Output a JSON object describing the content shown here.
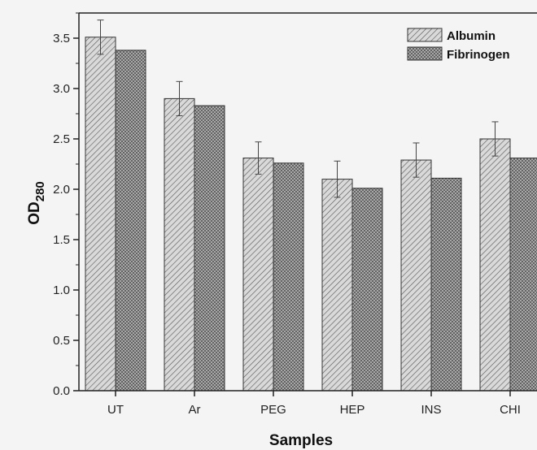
{
  "chart_data": {
    "type": "bar",
    "title": "",
    "xlabel": "Samples",
    "ylabel_main": "OD",
    "ylabel_sub": "280",
    "ylim": [
      0.0,
      3.75
    ],
    "yticks": [
      "0.0",
      "0.5",
      "1.0",
      "1.5",
      "2.0",
      "2.5",
      "3.0",
      "3.5"
    ],
    "categories": [
      "UT",
      "Ar",
      "PEG",
      "HEP",
      "INS",
      "CHI"
    ],
    "series": [
      {
        "name": "Albumin",
        "values": [
          3.51,
          2.9,
          2.31,
          2.1,
          2.29,
          2.5
        ],
        "error": [
          0.17,
          0.17,
          0.16,
          0.18,
          0.17,
          0.17
        ],
        "pattern": "diagonal-hatch"
      },
      {
        "name": "Fibrinogen",
        "values": [
          3.38,
          2.83,
          2.26,
          2.01,
          2.11,
          2.31
        ],
        "pattern": "crosshatch"
      }
    ],
    "legend_position": "top-right",
    "grid": false
  }
}
